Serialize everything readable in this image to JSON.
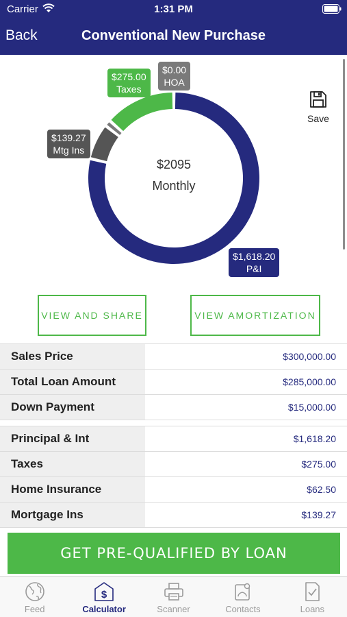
{
  "status_bar": {
    "carrier": "Carrier",
    "time": "1:31 PM"
  },
  "nav": {
    "back_label": "Back",
    "title": "Conventional New Purchase"
  },
  "chart_data": {
    "type": "pie",
    "title": "",
    "center_value": "$2095",
    "center_label": "Monthly",
    "slices": [
      {
        "label": "P&I",
        "value": 1618.2,
        "display": "$1,618.20",
        "color": "#252a7e"
      },
      {
        "label": "Mtg Ins",
        "value": 139.27,
        "display": "$139.27",
        "color": "#555555"
      },
      {
        "label": "HOA",
        "value": 0.0,
        "display": "$0.00",
        "color": "#7a7a7a"
      },
      {
        "label": "Taxes",
        "value": 275.0,
        "display": "$275.00",
        "color": "#4db848"
      }
    ]
  },
  "save": {
    "label": "Save",
    "icon": "floppy-disk-icon"
  },
  "actions": {
    "view_share": "VIEW AND SHARE",
    "view_amortization": "VIEW AMORTIZATION"
  },
  "loan_summary": [
    {
      "label": "Sales Price",
      "value": "$300,000.00"
    },
    {
      "label": "Total Loan Amount",
      "value": "$285,000.00"
    },
    {
      "label": "Down Payment",
      "value": "$15,000.00"
    }
  ],
  "payment_breakdown": [
    {
      "label": "Principal & Int",
      "value": "$1,618.20"
    },
    {
      "label": "Taxes",
      "value": "$275.00"
    },
    {
      "label": "Home Insurance",
      "value": "$62.50"
    },
    {
      "label": "Mortgage Ins",
      "value": "$139.27"
    }
  ],
  "cta": {
    "label": "GET PRE-QUALIFIED BY LOAN"
  },
  "tabs": [
    {
      "label": "Feed",
      "icon": "globe-icon"
    },
    {
      "label": "Calculator",
      "icon": "calculator-dollar-icon",
      "active": true
    },
    {
      "label": "Scanner",
      "icon": "printer-icon"
    },
    {
      "label": "Contacts",
      "icon": "contacts-icon"
    },
    {
      "label": "Loans",
      "icon": "document-check-icon"
    }
  ]
}
